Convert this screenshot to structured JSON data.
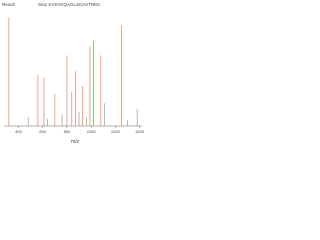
{
  "chart_data": {
    "type": "spectrum",
    "title": "Result",
    "subtitle": "Seq: KVKVKQAGLSGAVTNKK",
    "x_label": "m/z",
    "x": [
      320,
      480,
      560,
      610,
      640,
      700,
      760,
      800,
      840,
      870,
      900,
      930,
      960,
      990,
      1020,
      1080,
      1110,
      1250,
      1300,
      1380
    ],
    "values": [
      95,
      8,
      45,
      42,
      6,
      28,
      10,
      62,
      30,
      48,
      12,
      35,
      8,
      70,
      75,
      62,
      20,
      88,
      5,
      15
    ],
    "colors": [
      "#f07a50",
      "#999999",
      "#f07a50",
      "#f07a50",
      "#999999",
      "#f07a50",
      "#999999",
      "#f07a50",
      "#999999",
      "#f07a50",
      "#999999",
      "#f07a50",
      "#999999",
      "#f07a50",
      "#4caf50",
      "#f07a50",
      "#999999",
      "#f07a50",
      "#999999",
      "#999999"
    ],
    "xlim": [
      280,
      1420
    ],
    "ylim": [
      0,
      100
    ],
    "xticks": [
      400,
      600,
      800,
      1000,
      1200,
      1400
    ]
  }
}
